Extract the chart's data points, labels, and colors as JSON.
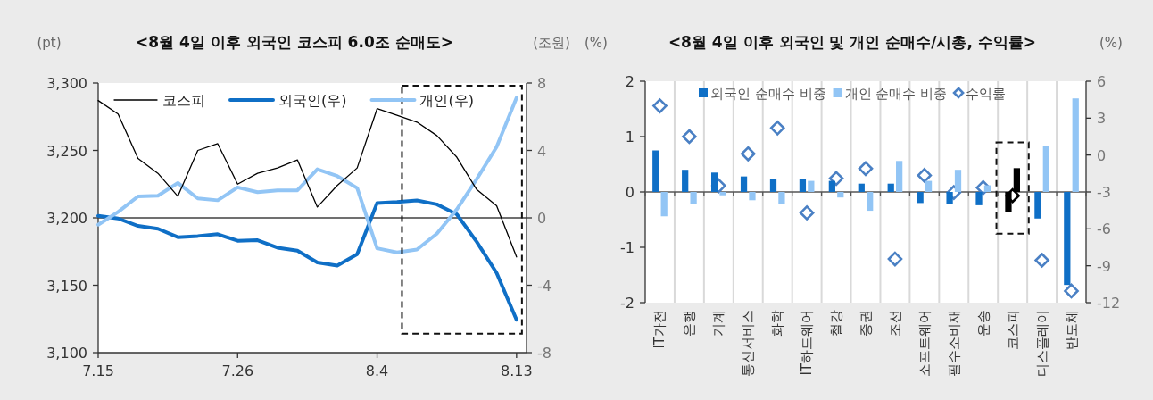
{
  "chart_data": [
    {
      "type": "line",
      "title": "<8월 4일 이후 외국인 코스피 6.0조 순매도>",
      "ylabel": "(pt)",
      "y2label": "(조원)",
      "categories": [
        "7.15",
        null,
        null,
        null,
        null,
        null,
        null,
        "7.26",
        null,
        null,
        null,
        null,
        null,
        null,
        "8.4",
        null,
        null,
        null,
        null,
        null,
        null,
        "8.13"
      ],
      "ylim": [
        3100,
        3300
      ],
      "yticks": [
        {
          "value": 3100,
          "label": "3,100"
        },
        {
          "value": 3150,
          "label": "3,150"
        },
        {
          "value": 3200,
          "label": "3,200"
        },
        {
          "value": 3250,
          "label": "3,250"
        },
        {
          "value": 3300,
          "label": "3,300"
        }
      ],
      "y2lim": [
        -8,
        8
      ],
      "y2ticks": [
        -8,
        -4,
        0,
        4,
        8
      ],
      "series": [
        {
          "name": "코스피",
          "color": "#000000",
          "values": [
            3287,
            3277,
            3244,
            3233,
            3216,
            3250,
            3255,
            3225,
            3233,
            3237,
            3243,
            3208,
            3224,
            3237,
            3281,
            3276,
            3271,
            3261,
            3245,
            3221,
            3209,
            3171
          ]
        },
        {
          "name": "외국인(우)",
          "color": "#0f6fc6",
          "axis": "y2",
          "values": [
            0.12,
            -0.04,
            -0.48,
            -0.65,
            -1.15,
            -1.08,
            -0.97,
            -1.36,
            -1.33,
            -1.77,
            -1.95,
            -2.65,
            -2.83,
            -2.16,
            0.88,
            0.94,
            1.03,
            0.8,
            0.21,
            -1.42,
            -3.27,
            -6.05
          ]
        },
        {
          "name": "개인(우)",
          "color": "#92c5f5",
          "axis": "y2",
          "values": [
            -0.41,
            0.35,
            1.27,
            1.31,
            2.07,
            1.15,
            1.04,
            1.81,
            1.52,
            1.63,
            1.63,
            2.88,
            2.48,
            1.77,
            -1.81,
            -2.05,
            -1.88,
            -0.94,
            0.5,
            2.3,
            4.21,
            7.12
          ]
        }
      ],
      "ref_lines": [
        {
          "axis": "y2",
          "value": 0,
          "color": "#404040"
        }
      ],
      "legend": "top"
    },
    {
      "type": "bar",
      "title": "<8월 4일 이후 외국인 및 개인 순매수/시총, 수익률>",
      "ylabel": "(%)",
      "y2label": "(%)",
      "categories": [
        "IT가전",
        "은행",
        "기계",
        "통신서비스",
        "화학",
        "IT하드웨어",
        "철강",
        "증권",
        "조선",
        "소프트웨어",
        "필수소비재",
        "운송",
        "코스피",
        "디스플레이",
        "반도체"
      ],
      "ylim": [
        -2,
        2
      ],
      "yticks": [
        -2,
        -1,
        0,
        1,
        2
      ],
      "y2lim": [
        -12,
        6
      ],
      "y2ticks": [
        -12,
        -9,
        -6,
        -3,
        0,
        3,
        6
      ],
      "series": [
        {
          "name": "외국인 순매수 비중",
          "color": "#0f6fc6",
          "colors": [
            "#0f6fc6",
            "#0f6fc6",
            "#0f6fc6",
            "#0f6fc6",
            "#0f6fc6",
            "#0f6fc6",
            "#0f6fc6",
            "#0f6fc6",
            "#0f6fc6",
            "#0f6fc6",
            "#0f6fc6",
            "#0f6fc6",
            "#000000",
            "#0f6fc6",
            "#0f6fc6"
          ],
          "values": [
            0.75,
            0.4,
            0.35,
            0.28,
            0.24,
            0.23,
            0.2,
            0.15,
            0.15,
            -0.2,
            -0.22,
            -0.24,
            -0.37,
            -0.48,
            -1.68
          ]
        },
        {
          "name": "개인 순매수 비중",
          "color": "#92c5f5",
          "colors": [
            "#92c5f5",
            "#92c5f5",
            "#92c5f5",
            "#92c5f5",
            "#92c5f5",
            "#92c5f5",
            "#92c5f5",
            "#92c5f5",
            "#92c5f5",
            "#92c5f5",
            "#92c5f5",
            "#92c5f5",
            "#000000",
            "#92c5f5",
            "#92c5f5"
          ],
          "values": [
            -0.44,
            -0.22,
            -0.06,
            -0.15,
            -0.22,
            0.2,
            -0.1,
            -0.34,
            0.56,
            0.2,
            0.4,
            0.12,
            0.43,
            0.83,
            1.69
          ]
        },
        {
          "name": "수익률",
          "type": "scatter",
          "axis": "y2",
          "marker": "diamond",
          "color": "#4a80c4",
          "colors": [
            "#4a80c4",
            "#4a80c4",
            "#4a80c4",
            "#4a80c4",
            "#4a80c4",
            "#4a80c4",
            "#4a80c4",
            "#4a80c4",
            "#4a80c4",
            "#4a80c4",
            "#4a80c4",
            "#4a80c4",
            "#000000",
            "#4a80c4",
            "#4a80c4"
          ],
          "values": [
            4.0,
            1.5,
            -2.5,
            0.1,
            2.2,
            -4.7,
            -1.9,
            -1.1,
            -8.45,
            -1.65,
            -3.05,
            -2.65,
            -3.3,
            -8.55,
            -11.05
          ]
        }
      ],
      "grid": "x",
      "legend": "top"
    }
  ]
}
